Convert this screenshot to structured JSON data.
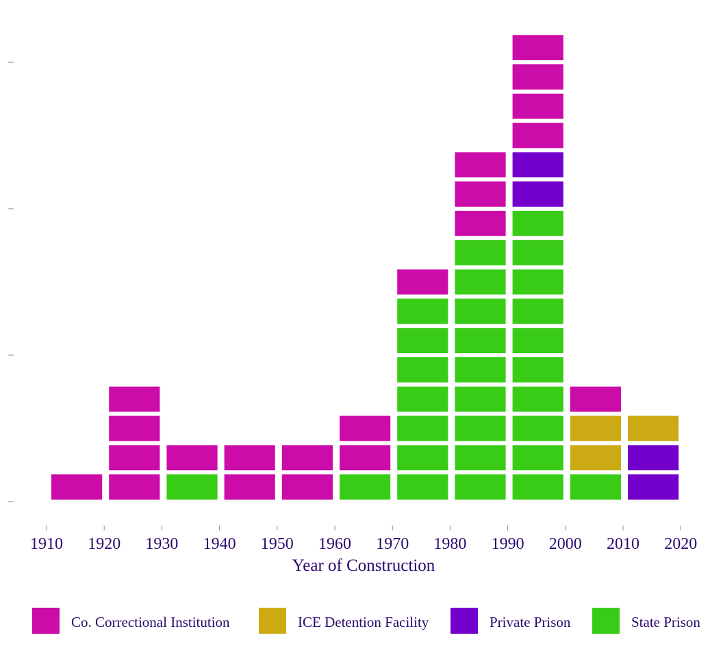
{
  "chart_data": {
    "type": "bar",
    "stacked": true,
    "style": "unit-blocks",
    "xlabel": "Year of Construction",
    "x_ticks": [
      "1910",
      "1920",
      "1930",
      "1940",
      "1950",
      "1960",
      "1970",
      "1980",
      "1990",
      "2000",
      "2010",
      "2020"
    ],
    "categories": [
      "1910s",
      "1920s",
      "1930s",
      "1940s",
      "1950s",
      "1960s",
      "1970s",
      "1980s",
      "1990s",
      "2000s",
      "2010s"
    ],
    "ylim": [
      0,
      16
    ],
    "grid": false,
    "legend_position": "bottom",
    "series": [
      {
        "name": "State Prison",
        "color": "#39cc17",
        "values": [
          0,
          0,
          1,
          0,
          0,
          1,
          7,
          9,
          10,
          1,
          0
        ]
      },
      {
        "name": "Private Prison",
        "color": "#7400cc",
        "values": [
          0,
          0,
          0,
          0,
          0,
          0,
          0,
          0,
          2,
          0,
          2
        ]
      },
      {
        "name": "ICE Detention Facility",
        "color": "#ccaa14",
        "values": [
          0,
          0,
          0,
          0,
          0,
          0,
          0,
          0,
          0,
          2,
          1
        ]
      },
      {
        "name": "Co. Correctional Institution",
        "color": "#cc0ca8",
        "values": [
          1,
          4,
          1,
          2,
          2,
          2,
          1,
          3,
          4,
          1,
          0
        ]
      }
    ],
    "legend_order": [
      "Co. Correctional Institution",
      "ICE Detention Facility",
      "Private Prison",
      "State Prison"
    ]
  }
}
